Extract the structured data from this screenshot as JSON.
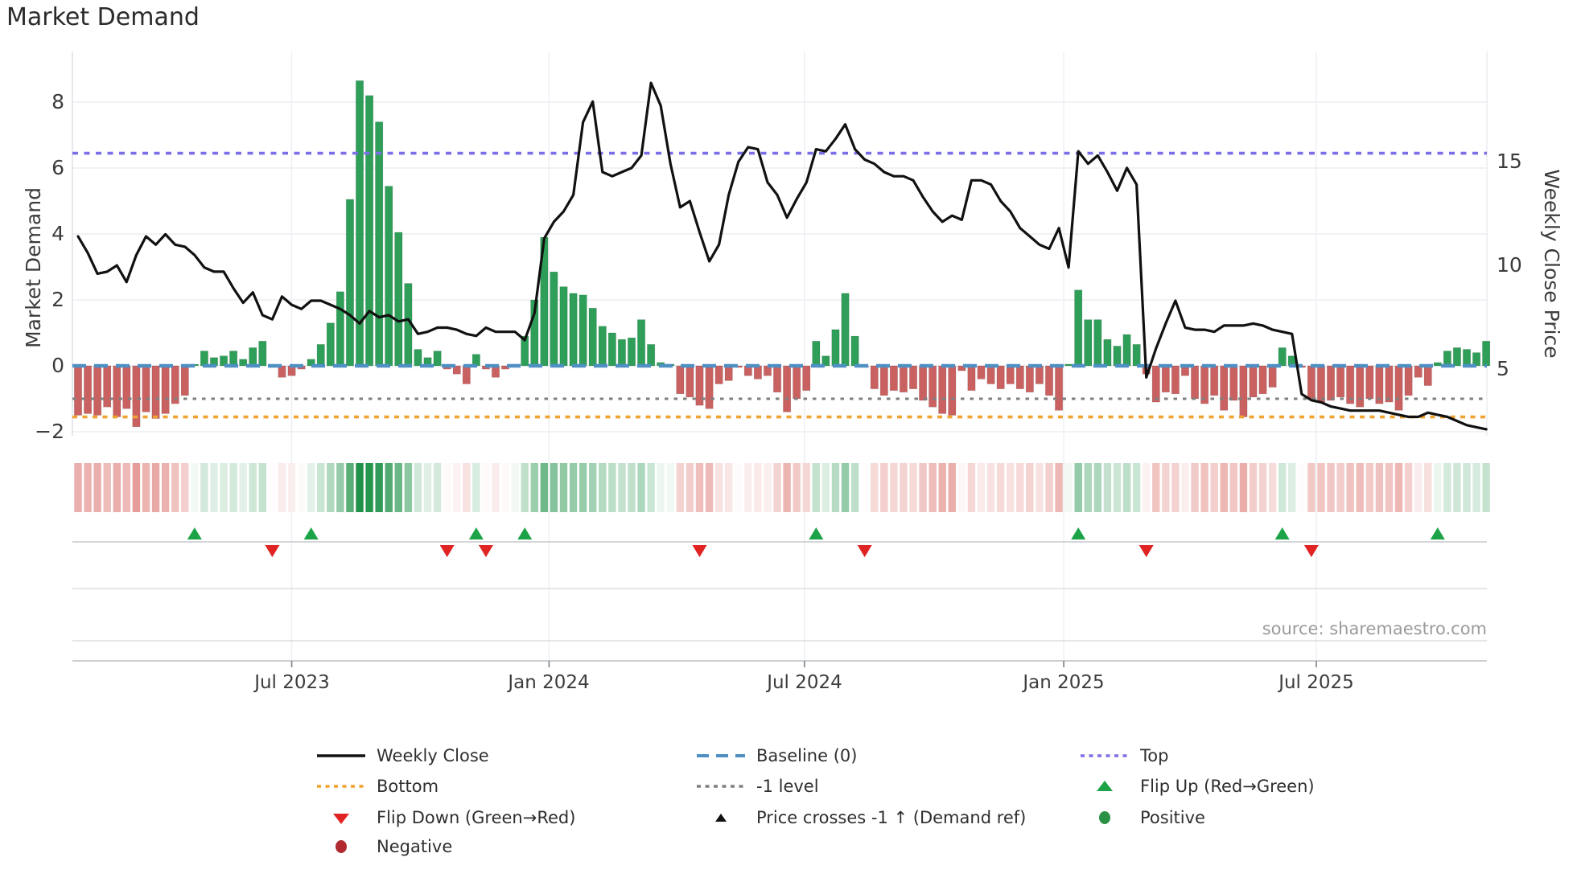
{
  "title": "Market Demand",
  "source_text": "source: sharemaestro.com",
  "left_axis": {
    "label": "Market Demand",
    "tick_labels": [
      "8",
      "6",
      "4",
      "2",
      "0",
      "−2"
    ],
    "tick_values": [
      8,
      6,
      4,
      2,
      0,
      -2
    ]
  },
  "right_axis": {
    "label": "Weekly Close Price",
    "tick_labels": [
      "15",
      "10",
      "5"
    ],
    "tick_values": [
      15,
      10,
      5
    ]
  },
  "x_axis": {
    "tick_labels": [
      "Jul 2023",
      "Jan 2024",
      "Jul 2024",
      "Jan 2025",
      "Jul 2025"
    ],
    "tick_weeks": [
      22.0,
      48.5,
      74.8,
      101.5,
      127.5
    ]
  },
  "colors": {
    "bar_positive": "#2e9e58",
    "bar_negative": "#c96161",
    "price_line": "#111111",
    "baseline": "#4e8fc4",
    "top_line": "#7b6fe8",
    "bottom_line": "#f0a32f",
    "minus_one_line": "#7f7f7f",
    "flip_up": "#1ca348",
    "flip_down": "#e02424",
    "positive_dot": "#2c9144",
    "negative_dot": "#b02a30",
    "heat_green": "#1f9148",
    "heat_red": "#e59a96",
    "grid": "#eceef2"
  },
  "legend": {
    "items": [
      {
        "label": "Weekly Close",
        "type": "line",
        "color": "#111111"
      },
      {
        "label": "Baseline (0)",
        "type": "dashes",
        "color": "#4e8fc4"
      },
      {
        "label": "Top",
        "type": "dots",
        "color": "#7b6fe8"
      },
      {
        "label": "Bottom",
        "type": "dots",
        "color": "#f0a32f"
      },
      {
        "label": "-1 level",
        "type": "dots",
        "color": "#7f7f7f"
      },
      {
        "label": "Flip Up (Red→Green)",
        "type": "tri-up",
        "color": "#1ca348"
      },
      {
        "label": "Flip Down (Green→Red)",
        "type": "tri-down",
        "color": "#e02424"
      },
      {
        "label": "Price crosses -1 ↑ (Demand ref)",
        "type": "tri-up-small",
        "color": "#111111"
      },
      {
        "label": "Positive",
        "type": "circle",
        "color": "#2c9144"
      },
      {
        "label": "Negative",
        "type": "circle",
        "color": "#b02a30"
      }
    ]
  },
  "chart_data": {
    "type": "bar+line",
    "title": "Market Demand",
    "weeks": 146,
    "ylabel_left": "Market Demand",
    "ylabel_right": "Weekly Close Price",
    "ylim_left": [
      -2.4,
      9.5
    ],
    "baseline_level": 0,
    "top_level": 6.45,
    "bottom_level": -1.55,
    "minus_one_level": -1,
    "grid": true,
    "legend_position": "bottom",
    "bars_market_demand": [
      -1.5,
      -1.45,
      -1.5,
      -1.25,
      -1.55,
      -1.3,
      -1.85,
      -1.4,
      -1.6,
      -1.45,
      -1.15,
      -0.9,
      0.05,
      0.45,
      0.25,
      0.3,
      0.45,
      0.2,
      0.55,
      0.75,
      -0.05,
      -0.35,
      -0.3,
      -0.1,
      0.2,
      0.65,
      1.3,
      2.25,
      5.05,
      8.65,
      8.2,
      7.4,
      5.45,
      4.05,
      2.5,
      0.5,
      0.25,
      0.45,
      -0.1,
      -0.25,
      -0.55,
      0.35,
      -0.1,
      -0.35,
      -0.1,
      0.05,
      0.9,
      2.0,
      3.9,
      2.85,
      2.4,
      2.2,
      2.15,
      1.75,
      1.2,
      1.0,
      0.8,
      0.85,
      1.4,
      0.65,
      0.1,
      0.05,
      -0.85,
      -0.95,
      -1.2,
      -1.3,
      -0.55,
      -0.45,
      -0.05,
      -0.3,
      -0.4,
      -0.3,
      -0.8,
      -1.4,
      -1.0,
      -0.75,
      0.75,
      0.3,
      1.1,
      2.2,
      0.9,
      -0.05,
      -0.7,
      -0.9,
      -0.75,
      -0.8,
      -0.7,
      -1.05,
      -1.25,
      -1.45,
      -1.5,
      -0.15,
      -0.75,
      -0.4,
      -0.55,
      -0.7,
      -0.55,
      -0.7,
      -0.8,
      -0.55,
      -0.9,
      -1.35,
      0.05,
      2.3,
      1.4,
      1.4,
      0.8,
      0.6,
      0.95,
      0.65,
      -0.25,
      -1.1,
      -0.8,
      -0.85,
      -0.3,
      -1.0,
      -1.15,
      -0.9,
      -1.35,
      -1.05,
      -1.55,
      -0.95,
      -0.85,
      -0.65,
      0.55,
      0.3,
      -0.05,
      -1.0,
      -1.1,
      -1.05,
      -0.95,
      -1.15,
      -1.25,
      -1.0,
      -1.15,
      -1.1,
      -1.35,
      -0.9,
      -0.35,
      -0.6,
      0.1,
      0.45,
      0.55,
      0.5,
      0.4,
      0.75
    ],
    "weekly_close_price": [
      11.4,
      10.6,
      9.6,
      9.7,
      10.0,
      9.2,
      10.5,
      11.4,
      11.0,
      11.5,
      11.0,
      10.9,
      10.5,
      9.9,
      9.7,
      9.7,
      8.9,
      8.2,
      8.7,
      7.6,
      7.4,
      8.5,
      8.1,
      7.9,
      8.3,
      8.3,
      8.1,
      7.9,
      7.6,
      7.2,
      7.8,
      7.5,
      7.6,
      7.3,
      7.4,
      6.7,
      6.8,
      7.0,
      7.0,
      6.9,
      6.7,
      6.6,
      7.0,
      6.8,
      6.8,
      6.8,
      6.4,
      7.7,
      11.3,
      12.1,
      12.6,
      13.4,
      16.9,
      17.9,
      14.5,
      14.3,
      14.5,
      14.7,
      15.3,
      18.8,
      17.7,
      14.9,
      12.8,
      13.1,
      11.6,
      10.2,
      11.0,
      13.4,
      15.0,
      15.7,
      15.6,
      14.0,
      13.4,
      12.3,
      13.2,
      14.0,
      15.6,
      15.5,
      16.1,
      16.8,
      15.6,
      15.1,
      14.9,
      14.5,
      14.3,
      14.3,
      14.1,
      13.3,
      12.6,
      12.1,
      12.4,
      12.2,
      14.1,
      14.1,
      13.9,
      13.1,
      12.6,
      11.8,
      11.4,
      11.0,
      10.8,
      11.8,
      9.9,
      15.5,
      14.9,
      15.3,
      14.5,
      13.6,
      14.7,
      13.9,
      4.6,
      6.0,
      7.2,
      8.3,
      7.0,
      6.9,
      6.9,
      6.8,
      7.1,
      7.1,
      7.1,
      7.2,
      7.1,
      6.9,
      6.8,
      6.7,
      3.8,
      3.5,
      3.4,
      3.2,
      3.1,
      3.0,
      3.0,
      3.0,
      3.0,
      2.9,
      2.8,
      2.7,
      2.7,
      2.9,
      2.8,
      2.7,
      2.5,
      2.3,
      2.2,
      2.1
    ],
    "flip_up_weeks": [
      12,
      24,
      41,
      46,
      76,
      103,
      124,
      140
    ],
    "flip_down_weeks": [
      20,
      38,
      42,
      64,
      81,
      110,
      127
    ]
  }
}
